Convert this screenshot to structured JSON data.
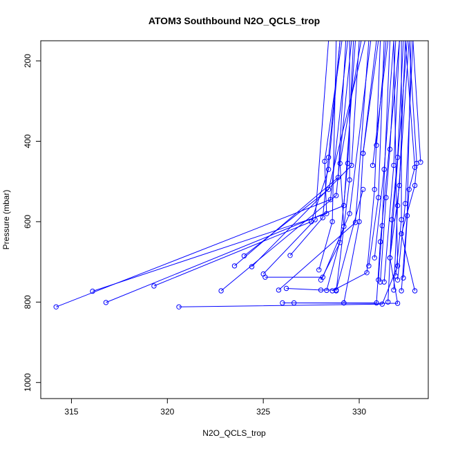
{
  "chart_data": {
    "type": "scatter",
    "title": "ATOM3 Southbound N2O_QCLS_trop",
    "xlabel": "N2O_QCLS_trop",
    "ylabel": "Pressure (mbar)",
    "xlim": [
      313.4,
      333.6
    ],
    "ylim": [
      1040,
      150
    ],
    "y_reversed": true,
    "x_ticks": [
      315,
      320,
      325,
      330
    ],
    "y_ticks": [
      200,
      400,
      600,
      800,
      1000
    ],
    "series_color": "#0000ff",
    "grid": false,
    "legend": "none",
    "series": [
      {
        "name": "",
        "values": [
          [
            314.2,
            812
          ],
          [
            328.5,
            545
          ],
          [
            329.4,
            150
          ]
        ]
      },
      {
        "name": "",
        "values": [
          [
            316.1,
            773
          ],
          [
            328.3,
            580
          ],
          [
            328.2,
            450
          ],
          [
            329.1,
            150
          ]
        ]
      },
      {
        "name": "",
        "values": [
          [
            316.8,
            801
          ],
          [
            329.2,
            560
          ],
          [
            329.8,
            150
          ]
        ]
      },
      {
        "name": "",
        "values": [
          [
            319.3,
            760
          ],
          [
            327.5,
            600
          ],
          [
            328.4,
            470
          ],
          [
            329.0,
            150
          ]
        ]
      },
      {
        "name": "",
        "values": [
          [
            320.6,
            812
          ],
          [
            331.2,
            805
          ],
          [
            332.0,
            710
          ],
          [
            331.8,
            150
          ]
        ]
      },
      {
        "name": "",
        "values": [
          [
            322.8,
            772
          ],
          [
            328.8,
            535
          ],
          [
            329.6,
            150
          ]
        ]
      },
      {
        "name": "",
        "values": [
          [
            323.5,
            710
          ],
          [
            328.9,
            490
          ],
          [
            329.3,
            150
          ]
        ]
      },
      {
        "name": "",
        "values": [
          [
            324.0,
            685
          ],
          [
            328.4,
            520
          ],
          [
            330.3,
            150
          ]
        ]
      },
      {
        "name": "",
        "values": [
          [
            324.4,
            712
          ],
          [
            329.6,
            460
          ],
          [
            330.0,
            150
          ]
        ]
      },
      {
        "name": "",
        "values": [
          [
            325.0,
            730
          ],
          [
            327.7,
            595
          ],
          [
            328.4,
            150
          ]
        ]
      },
      {
        "name": "",
        "values": [
          [
            325.1,
            738
          ],
          [
            328.1,
            738
          ],
          [
            329.5,
            580
          ],
          [
            330.6,
            150
          ]
        ]
      },
      {
        "name": "",
        "values": [
          [
            325.8,
            770
          ],
          [
            329.8,
            602
          ],
          [
            330.5,
            150
          ]
        ]
      },
      {
        "name": "",
        "values": [
          [
            326.0,
            802
          ],
          [
            332.0,
            803
          ],
          [
            331.6,
            690
          ],
          [
            332.5,
            150
          ]
        ]
      },
      {
        "name": "",
        "values": [
          [
            326.2,
            766
          ],
          [
            328.0,
            770
          ],
          [
            328.8,
            770
          ],
          [
            330.2,
            520
          ]
        ]
      },
      {
        "name": "",
        "values": [
          [
            326.4,
            684
          ],
          [
            328.1,
            590
          ],
          [
            328.4,
            440
          ],
          [
            329.0,
            150
          ]
        ]
      },
      {
        "name": "",
        "values": [
          [
            326.6,
            802
          ],
          [
            329.2,
            802
          ],
          [
            330.9,
            802
          ],
          [
            331.1,
            650
          ],
          [
            332.1,
            150
          ]
        ]
      },
      {
        "name": "",
        "values": [
          [
            327.9,
            720
          ],
          [
            328.6,
            600
          ],
          [
            328.8,
            150
          ]
        ]
      },
      {
        "name": "",
        "values": [
          [
            328.0,
            745
          ],
          [
            329.0,
            652
          ],
          [
            329.4,
            455
          ],
          [
            329.7,
            150
          ]
        ]
      },
      {
        "name": "",
        "values": [
          [
            328.3,
            771
          ],
          [
            329.2,
            612
          ],
          [
            329.0,
            455
          ],
          [
            330.1,
            150
          ]
        ]
      },
      {
        "name": "",
        "values": [
          [
            328.6,
            772
          ],
          [
            330.4,
            727
          ],
          [
            330.8,
            520
          ],
          [
            331.1,
            150
          ]
        ]
      },
      {
        "name": "",
        "values": [
          [
            328.8,
            772
          ],
          [
            329.5,
            496
          ],
          [
            329.5,
            150
          ]
        ]
      },
      {
        "name": "",
        "values": [
          [
            329.2,
            802
          ],
          [
            330.0,
            600
          ],
          [
            330.2,
            430
          ],
          [
            330.9,
            150
          ]
        ]
      },
      {
        "name": "",
        "values": [
          [
            330.2,
            430
          ],
          [
            331.0,
            150
          ]
        ]
      },
      {
        "name": "",
        "values": [
          [
            330.5,
            710
          ],
          [
            331.0,
            540
          ],
          [
            331.3,
            150
          ]
        ]
      },
      {
        "name": "",
        "values": [
          [
            330.7,
            460
          ],
          [
            331.5,
            150
          ]
        ]
      },
      {
        "name": "",
        "values": [
          [
            330.8,
            690
          ],
          [
            331.3,
            470
          ],
          [
            331.8,
            150
          ]
        ]
      },
      {
        "name": "",
        "values": [
          [
            330.9,
            410
          ],
          [
            331.4,
            150
          ]
        ]
      },
      {
        "name": "",
        "values": [
          [
            331.0,
            745
          ],
          [
            331.2,
            610
          ],
          [
            331.6,
            150
          ]
        ]
      },
      {
        "name": "",
        "values": [
          [
            331.1,
            750
          ],
          [
            331.4,
            540
          ],
          [
            331.6,
            420
          ],
          [
            331.9,
            150
          ]
        ]
      },
      {
        "name": "",
        "values": [
          [
            331.3,
            750
          ],
          [
            331.8,
            460
          ],
          [
            332.1,
            150
          ]
        ]
      },
      {
        "name": "",
        "values": [
          [
            331.5,
            800
          ],
          [
            331.7,
            595
          ],
          [
            332.0,
            440
          ],
          [
            332.3,
            150
          ]
        ]
      },
      {
        "name": "",
        "values": [
          [
            331.6,
            690
          ],
          [
            332.1,
            510
          ],
          [
            332.4,
            150
          ]
        ]
      },
      {
        "name": "",
        "values": [
          [
            331.8,
            770
          ],
          [
            332.0,
            560
          ],
          [
            332.6,
            150
          ]
        ]
      },
      {
        "name": "",
        "values": [
          [
            331.9,
            735
          ],
          [
            332.2,
            595
          ],
          [
            332.2,
            150
          ]
        ]
      },
      {
        "name": "",
        "values": [
          [
            332.0,
            745
          ],
          [
            332.4,
            555
          ],
          [
            332.8,
            150
          ]
        ]
      },
      {
        "name": "",
        "values": [
          [
            332.2,
            772
          ],
          [
            332.5,
            585
          ],
          [
            332.7,
            150
          ]
        ]
      },
      {
        "name": "",
        "values": [
          [
            332.3,
            740
          ],
          [
            332.6,
            520
          ],
          [
            332.9,
            465
          ],
          [
            332.4,
            150
          ]
        ]
      },
      {
        "name": "",
        "values": [
          [
            332.9,
            772
          ],
          [
            332.2,
            630
          ],
          [
            332.9,
            510
          ],
          [
            333.0,
            455
          ],
          [
            332.6,
            150
          ]
        ]
      },
      {
        "name": "",
        "values": [
          [
            333.2,
            452
          ],
          [
            332.8,
            150
          ]
        ]
      }
    ]
  }
}
